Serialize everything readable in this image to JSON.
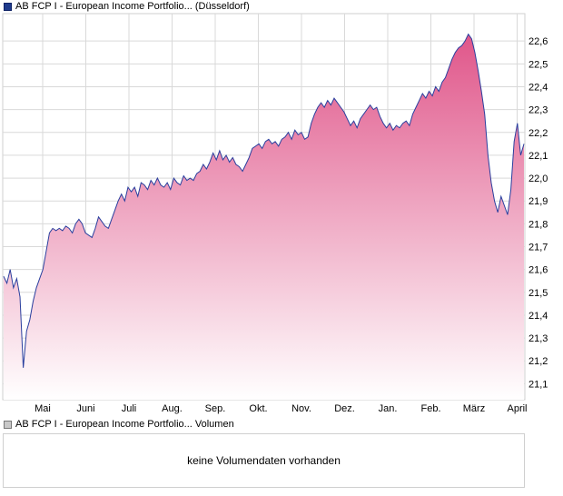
{
  "legend": {
    "price": "AB FCP I - European Income Portfolio... (Düsseldorf)",
    "volume": "AB FCP I - European Income Portfolio... Volumen"
  },
  "volume_panel": {
    "message": "keine Volumendaten vorhanden"
  },
  "colors": {
    "line": "#2a3f9e",
    "fill_top": "#e0568a",
    "fill_bottom": "#ffffff",
    "grid": "#d9d9d9"
  },
  "chart_data": {
    "type": "area",
    "title": "",
    "xlabel": "",
    "ylabel": "",
    "ylim": [
      21.03,
      22.72
    ],
    "y_ticks": [
      21.1,
      21.2,
      21.3,
      21.4,
      21.5,
      21.6,
      21.7,
      21.8,
      21.9,
      22.0,
      22.1,
      22.2,
      22.3,
      22.4,
      22.5,
      22.6
    ],
    "y_tick_labels": [
      "21,1",
      "21,2",
      "21,3",
      "21,4",
      "21,5",
      "21,6",
      "21,7",
      "21,8",
      "21,9",
      "22,0",
      "22,1",
      "22,2",
      "22,3",
      "22,4",
      "22,5",
      "22,6"
    ],
    "x_tick_labels": [
      "Mai",
      "Juni",
      "Juli",
      "Aug.",
      "Sep.",
      "Okt.",
      "Nov.",
      "Dez.",
      "Jan.",
      "Feb.",
      "März",
      "April"
    ],
    "grid": true,
    "series": [
      {
        "values": [
          21.57,
          21.54,
          21.6,
          21.52,
          21.56,
          21.48,
          21.17,
          21.33,
          21.38,
          21.46,
          21.52,
          21.56,
          21.6,
          21.68,
          21.76,
          21.78,
          21.77,
          21.78,
          21.77,
          21.79,
          21.78,
          21.76,
          21.8,
          21.82,
          21.8,
          21.76,
          21.75,
          21.74,
          21.78,
          21.83,
          21.81,
          21.79,
          21.78,
          21.82,
          21.86,
          21.9,
          21.93,
          21.9,
          21.96,
          21.94,
          21.96,
          21.92,
          21.98,
          21.97,
          21.95,
          21.99,
          21.97,
          22.0,
          21.97,
          21.96,
          21.98,
          21.95,
          22.0,
          21.98,
          21.97,
          22.01,
          21.99,
          22.0,
          21.99,
          22.02,
          22.03,
          22.06,
          22.04,
          22.07,
          22.11,
          22.08,
          22.12,
          22.08,
          22.1,
          22.07,
          22.09,
          22.06,
          22.05,
          22.03,
          22.06,
          22.09,
          22.13,
          22.14,
          22.15,
          22.13,
          22.16,
          22.17,
          22.15,
          22.16,
          22.14,
          22.17,
          22.18,
          22.2,
          22.17,
          22.21,
          22.19,
          22.2,
          22.17,
          22.18,
          22.24,
          22.28,
          22.31,
          22.33,
          22.31,
          22.34,
          22.32,
          22.35,
          22.33,
          22.31,
          22.29,
          22.26,
          22.23,
          22.25,
          22.22,
          22.26,
          22.28,
          22.3,
          22.32,
          22.3,
          22.31,
          22.27,
          22.24,
          22.22,
          22.24,
          22.21,
          22.23,
          22.22,
          22.24,
          22.25,
          22.23,
          22.28,
          22.31,
          22.34,
          22.37,
          22.35,
          22.38,
          22.36,
          22.4,
          22.38,
          22.42,
          22.44,
          22.48,
          22.52,
          22.55,
          22.57,
          22.58,
          22.6,
          22.63,
          22.61,
          22.55,
          22.47,
          22.38,
          22.28,
          22.1,
          21.98,
          21.9,
          21.85,
          21.92,
          21.88,
          21.84,
          21.95,
          22.16,
          22.24,
          22.1,
          22.15
        ]
      }
    ]
  }
}
